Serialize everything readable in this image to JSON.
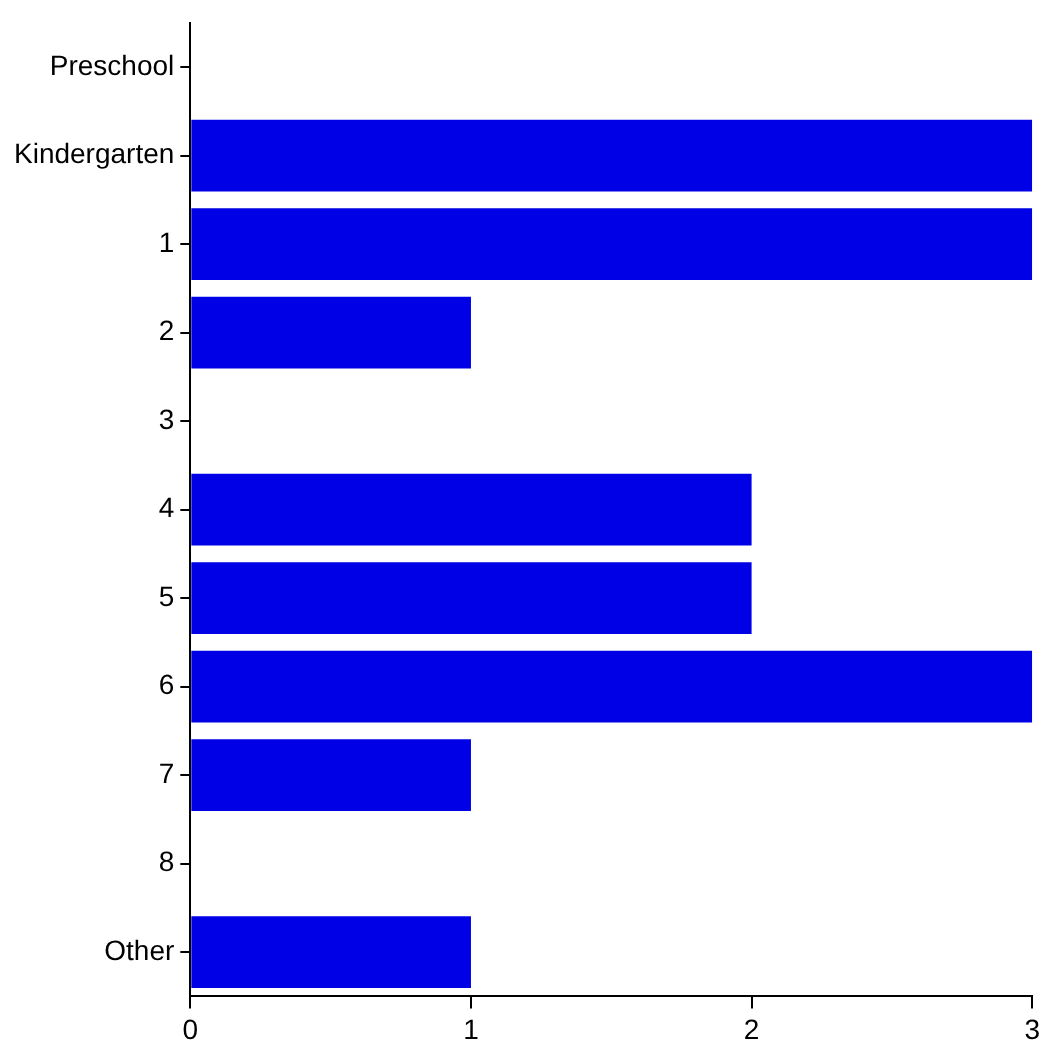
{
  "chart_data": {
    "type": "bar",
    "orientation": "horizontal",
    "categories": [
      "Preschool",
      "Kindergarten",
      "1",
      "2",
      "3",
      "4",
      "5",
      "6",
      "7",
      "8",
      "Other"
    ],
    "values": [
      0,
      3,
      3,
      1,
      0,
      2,
      2,
      3,
      1,
      0,
      1
    ],
    "color": "#0000e6",
    "xlim": [
      0,
      3
    ],
    "xticks": [
      0,
      1,
      2,
      3
    ],
    "grid": false,
    "legend": false
  }
}
